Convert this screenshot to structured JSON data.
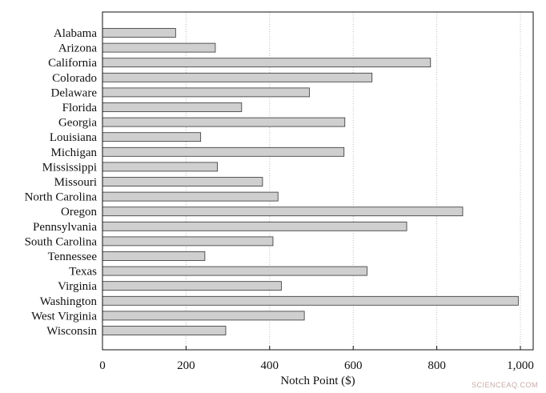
{
  "chart_data": {
    "type": "bar",
    "orientation": "horizontal",
    "categories": [
      "Alabama",
      "Arizona",
      "California",
      "Colorado",
      "Delaware",
      "Florida",
      "Georgia",
      "Louisiana",
      "Michigan",
      "Mississippi",
      "Missouri",
      "North Carolina",
      "Oregon",
      "Pennsylvania",
      "South Carolina",
      "Tennessee",
      "Texas",
      "Virginia",
      "Washington",
      "West Virginia",
      "Wisconsin"
    ],
    "values": [
      175,
      270,
      785,
      645,
      495,
      333,
      580,
      235,
      578,
      275,
      383,
      420,
      862,
      728,
      408,
      245,
      633,
      428,
      995,
      483,
      295
    ],
    "xlabel": "Notch Point ($)",
    "ylabel": "",
    "xlim": [
      0,
      1000
    ],
    "xticks": [
      0,
      200,
      400,
      600,
      800,
      1000
    ],
    "xtick_labels": [
      "0",
      "200",
      "400",
      "600",
      "800",
      "1,000"
    ],
    "grid": "vertical dotted",
    "bar_fill": "#cfcfcf",
    "bar_stroke": "#333333"
  },
  "watermark": "SCIENCEAQ.COM"
}
